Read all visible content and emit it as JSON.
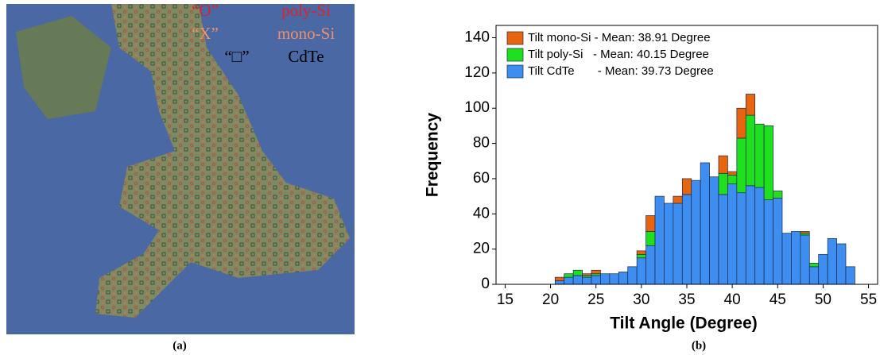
{
  "map_legend": {
    "poly_symbol": "“O”",
    "poly_label": "poly-Si",
    "mono_symbol": "“X”",
    "mono_label": "mono-Si",
    "cdte_symbol": "“□”",
    "cdte_label": "CdTe"
  },
  "captions": {
    "left": "(a)",
    "right": "(b)"
  },
  "chart_data": {
    "type": "histogram",
    "x_label": "Tilt Angle (Degree)",
    "y_label": "Frequency",
    "bins": [
      20.5,
      21.5,
      22.5,
      23.5,
      24.5,
      25.5,
      26.5,
      27.5,
      28.5,
      29.5,
      30.5,
      31.5,
      32.5,
      33.5,
      34.5,
      35.5,
      36.5,
      37.5,
      38.5,
      39.5,
      40.5,
      41.5,
      42.5,
      43.5,
      44.5,
      45.5,
      46.5,
      47.5,
      48.5,
      49.5,
      50.5,
      51.5,
      52.5,
      53.5
    ],
    "series": [
      {
        "name": "Tilt mono-Si - Mean: 38.91 Degree",
        "color": "#e8650f",
        "values": [
          2,
          0,
          0,
          1,
          2,
          0,
          0,
          0,
          0,
          2,
          9,
          0,
          0,
          4,
          9,
          0,
          0,
          0,
          10,
          2,
          17,
          12,
          0,
          0,
          0,
          0,
          0,
          1,
          0,
          0,
          0,
          0,
          0
        ]
      },
      {
        "name": "Tilt poly-Si   - Mean: 40.15 Degree",
        "color": "#1ee01e",
        "values": [
          0,
          2,
          3,
          1,
          1,
          0,
          0,
          0,
          0,
          2,
          8,
          0,
          0,
          0,
          0,
          0,
          0,
          0,
          12,
          5,
          31,
          40,
          36,
          42,
          4,
          0,
          0,
          1,
          2,
          0,
          0,
          0,
          0
        ]
      },
      {
        "name": "Tilt CdTe       - Mean: 39.73 Degree",
        "color": "#3d8ef0",
        "values": [
          2,
          4,
          5,
          4,
          5,
          6,
          6,
          7,
          10,
          15,
          22,
          50,
          46,
          46,
          51,
          59,
          69,
          61,
          51,
          57,
          52,
          56,
          55,
          48,
          49,
          29,
          30,
          28,
          10,
          17,
          26,
          23,
          10
        ]
      }
    ],
    "xlim": [
      14,
      56
    ],
    "xticks": [
      15,
      20,
      25,
      30,
      35,
      40,
      45,
      50,
      55
    ],
    "ylim": [
      0,
      147
    ],
    "yticks": [
      0,
      20,
      40,
      60,
      80,
      100,
      120,
      140
    ],
    "legend": "upper-left"
  }
}
